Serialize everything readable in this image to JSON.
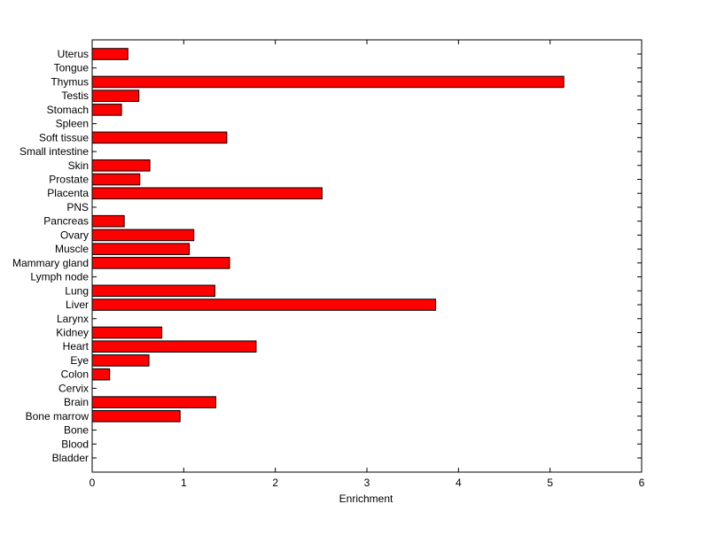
{
  "chart_data": {
    "type": "bar",
    "orientation": "horizontal",
    "title": "",
    "xlabel": "Enrichment",
    "ylabel": "",
    "xlim": [
      0,
      6
    ],
    "x_ticks": [
      0,
      1,
      2,
      3,
      4,
      5,
      6
    ],
    "grid": false,
    "bar_color": "#ff0000",
    "edge_color": "#000000",
    "categories": [
      "Bladder",
      "Blood",
      "Bone",
      "Bone marrow",
      "Brain",
      "Cervix",
      "Colon",
      "Eye",
      "Heart",
      "Kidney",
      "Larynx",
      "Liver",
      "Lung",
      "Lymph node",
      "Mammary gland",
      "Muscle",
      "Ovary",
      "Pancreas",
      "PNS",
      "Placenta",
      "Prostate",
      "Skin",
      "Small intestine",
      "Soft tissue",
      "Spleen",
      "Stomach",
      "Testis",
      "Thymus",
      "Tongue",
      "Uterus"
    ],
    "values": [
      0,
      0,
      0,
      0.96,
      1.35,
      0,
      0.19,
      0.62,
      1.79,
      0.76,
      0,
      3.75,
      1.34,
      0,
      1.5,
      1.06,
      1.11,
      0.35,
      0,
      2.51,
      0.52,
      0.63,
      0,
      1.47,
      0,
      0.32,
      0.51,
      5.15,
      0,
      0.39
    ]
  }
}
